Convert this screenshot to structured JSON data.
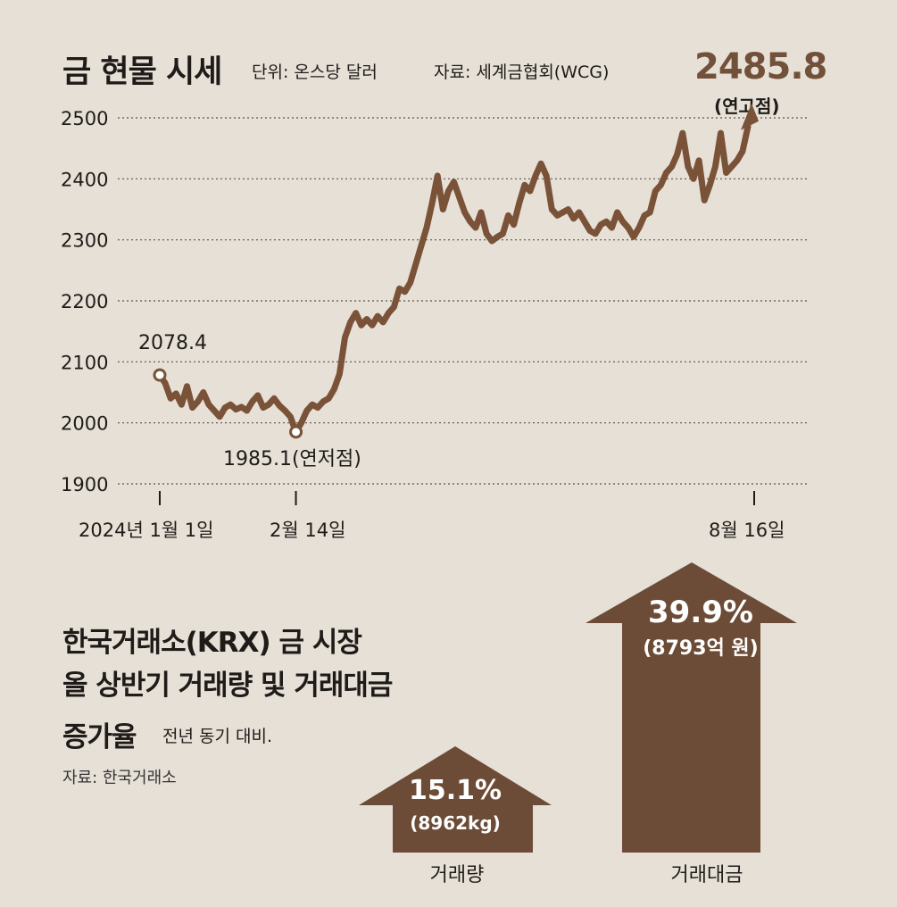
{
  "title": "금 현물 시세",
  "unit": "단위: 온스당 달러",
  "source": "자료: 세계금협회(WCG)",
  "peak_value": "2485.8",
  "peak_note": "(연고점)",
  "start_label": "2078.4",
  "low_label": "1985.1(연저점)",
  "x_labels": [
    "2024년 1월 1일",
    "2월 14일",
    "8월 16일"
  ],
  "colors": {
    "line": "#7a5238",
    "arrow": "#6d4c37",
    "peak": "#72513a",
    "background": "#e7e0d7"
  },
  "chart_data": {
    "type": "line",
    "title": "금 현물 시세",
    "ylabel": "온스당 달러",
    "ylim": [
      1900,
      2500
    ],
    "y_ticks": [
      1900,
      2000,
      2100,
      2200,
      2300,
      2400,
      2500
    ],
    "x_tick_labels": [
      "2024년 1월 1일",
      "2월 14일",
      "8월 16일"
    ],
    "series": [
      {
        "name": "금 현물 시세",
        "values": [
          2078.4,
          2065,
          2040,
          2048,
          2030,
          2060,
          2025,
          2035,
          2050,
          2030,
          2020,
          2010,
          2025,
          2030,
          2022,
          2026,
          2020,
          2035,
          2045,
          2025,
          2030,
          2040,
          2028,
          2020,
          2010,
          1985.1,
          2000,
          2020,
          2030,
          2025,
          2035,
          2040,
          2055,
          2080,
          2140,
          2165,
          2180,
          2160,
          2170,
          2160,
          2175,
          2165,
          2180,
          2190,
          2220,
          2215,
          2230,
          2260,
          2290,
          2320,
          2360,
          2405,
          2350,
          2380,
          2395,
          2370,
          2345,
          2330,
          2320,
          2345,
          2310,
          2298,
          2305,
          2310,
          2340,
          2325,
          2360,
          2390,
          2380,
          2405,
          2425,
          2405,
          2350,
          2340,
          2345,
          2350,
          2335,
          2345,
          2330,
          2315,
          2310,
          2325,
          2330,
          2320,
          2345,
          2330,
          2320,
          2305,
          2320,
          2340,
          2345,
          2380,
          2390,
          2410,
          2420,
          2440,
          2475,
          2420,
          2400,
          2430,
          2365,
          2390,
          2420,
          2475,
          2410,
          2420,
          2430,
          2445,
          2485.8
        ]
      }
    ]
  },
  "krx": {
    "title_line1": "한국거래소(KRX) 금 시장",
    "title_line2": "올 상반기 거래량 및 거래대금",
    "title_line3": "증가율",
    "note": "전년 동기 대비.",
    "source": "자료: 한국거래소"
  },
  "arrows": [
    {
      "pct": "15.1%",
      "sub": "(8962kg)",
      "label": "거래량",
      "value": 15.1
    },
    {
      "pct": "39.9%",
      "sub": "(8793억 원)",
      "label": "거래대금",
      "value": 39.9
    }
  ]
}
